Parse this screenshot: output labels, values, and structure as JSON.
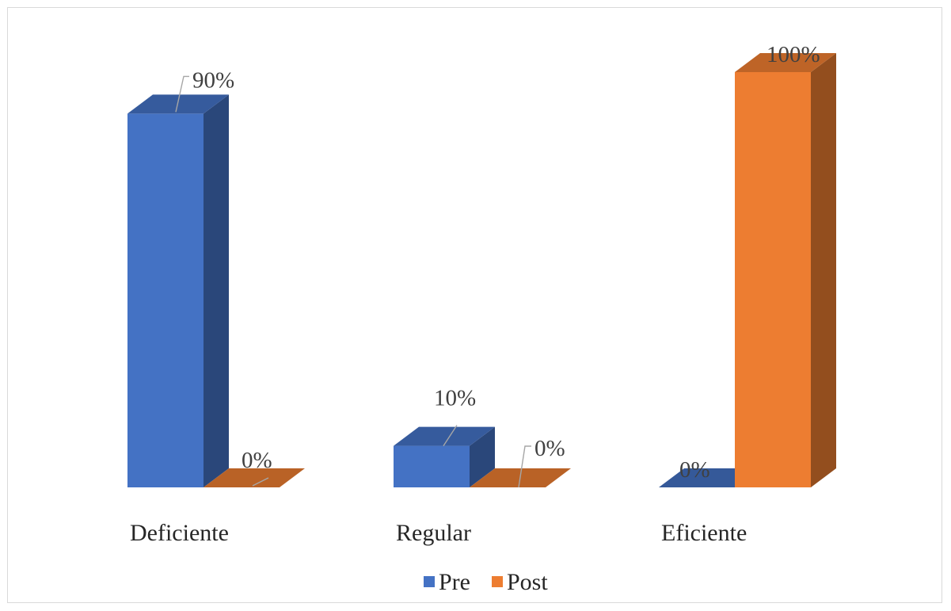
{
  "chart_data": {
    "type": "bar",
    "style": "3d-clustered-column",
    "categories": [
      "Deficiente",
      "Regular",
      "Eficiente"
    ],
    "series": [
      {
        "name": "Pre",
        "values": [
          90,
          10,
          0
        ],
        "labels": [
          "90%",
          "10%",
          "0%"
        ],
        "color": "#4472C4"
      },
      {
        "name": "Post",
        "values": [
          0,
          0,
          100
        ],
        "labels": [
          "0%",
          "0%",
          "100%"
        ],
        "color": "#ED7D31"
      }
    ],
    "ylim": [
      0,
      100
    ],
    "unit": "%",
    "grid": false,
    "legend": "bottom"
  }
}
